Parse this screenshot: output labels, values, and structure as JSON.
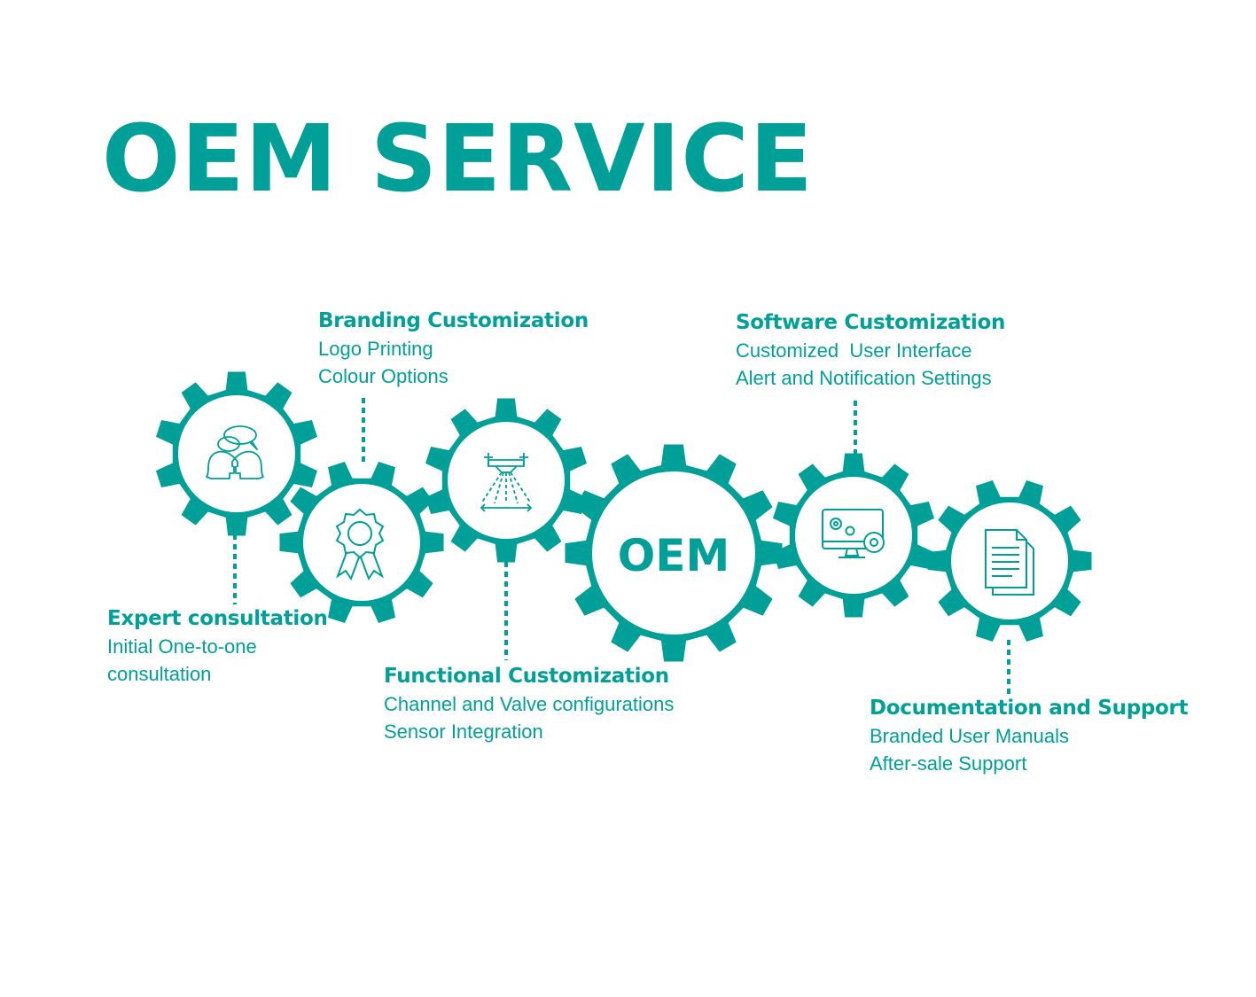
{
  "title": "OEM SERVICE",
  "colors": {
    "accent": "#00A098",
    "background": "#ffffff"
  },
  "center_label": "OEM",
  "gears": [
    {
      "name": "expert-consultation-gear",
      "icon": "consultation-heads-icon"
    },
    {
      "name": "branding-gear",
      "icon": "award-ribbon-icon"
    },
    {
      "name": "functional-gear",
      "icon": "spray-drone-icon"
    },
    {
      "name": "oem-center-gear",
      "icon": "none"
    },
    {
      "name": "software-gear",
      "icon": "computer-settings-icon"
    },
    {
      "name": "documentation-gear",
      "icon": "document-icon"
    }
  ],
  "blocks": {
    "expert": {
      "heading": "Expert consultation",
      "lines": [
        "Initial One-to-one",
        "consultation"
      ]
    },
    "branding": {
      "heading": "Branding Customization",
      "lines": [
        "Logo Printing",
        "Colour Options"
      ]
    },
    "functional": {
      "heading": "Functional Customization",
      "lines": [
        "Channel and Valve configurations",
        "Sensor Integration"
      ]
    },
    "software": {
      "heading": "Software Customization",
      "lines": [
        "Customized  User Interface",
        "Alert and Notification Settings"
      ]
    },
    "documentation": {
      "heading": "Documentation and Support",
      "lines": [
        "Branded User Manuals",
        "After-sale Support"
      ]
    }
  }
}
